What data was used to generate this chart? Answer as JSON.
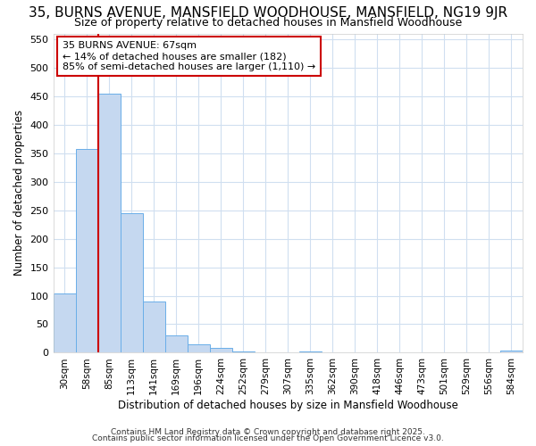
{
  "title": "35, BURNS AVENUE, MANSFIELD WOODHOUSE, MANSFIELD, NG19 9JR",
  "subtitle": "Size of property relative to detached houses in Mansfield Woodhouse",
  "xlabel": "Distribution of detached houses by size in Mansfield Woodhouse",
  "ylabel": "Number of detached properties",
  "categories": [
    "30sqm",
    "58sqm",
    "85sqm",
    "113sqm",
    "141sqm",
    "169sqm",
    "196sqm",
    "224sqm",
    "252sqm",
    "279sqm",
    "307sqm",
    "335sqm",
    "362sqm",
    "390sqm",
    "418sqm",
    "446sqm",
    "473sqm",
    "501sqm",
    "529sqm",
    "556sqm",
    "584sqm"
  ],
  "values": [
    104,
    357,
    455,
    245,
    90,
    31,
    15,
    9,
    3,
    0,
    0,
    3,
    0,
    0,
    0,
    0,
    0,
    0,
    0,
    0,
    4
  ],
  "bar_color": "#c5d8f0",
  "bar_edge_color": "#6aaee8",
  "red_line_x": 1.5,
  "annotation_title": "35 BURNS AVENUE: 67sqm",
  "annotation_line1": "← 14% of detached houses are smaller (182)",
  "annotation_line2": "85% of semi-detached houses are larger (1,110) →",
  "annotation_box_color": "#ffffff",
  "annotation_box_edge": "#cc0000",
  "red_line_color": "#cc0000",
  "background_color": "#ffffff",
  "grid_color": "#d0dff0",
  "footer_line1": "Contains HM Land Registry data © Crown copyright and database right 2025.",
  "footer_line2": "Contains public sector information licensed under the Open Government Licence v3.0.",
  "ylim": [
    0,
    560
  ],
  "yticks": [
    0,
    50,
    100,
    150,
    200,
    250,
    300,
    350,
    400,
    450,
    500,
    550
  ],
  "title_fontsize": 11,
  "subtitle_fontsize": 9
}
